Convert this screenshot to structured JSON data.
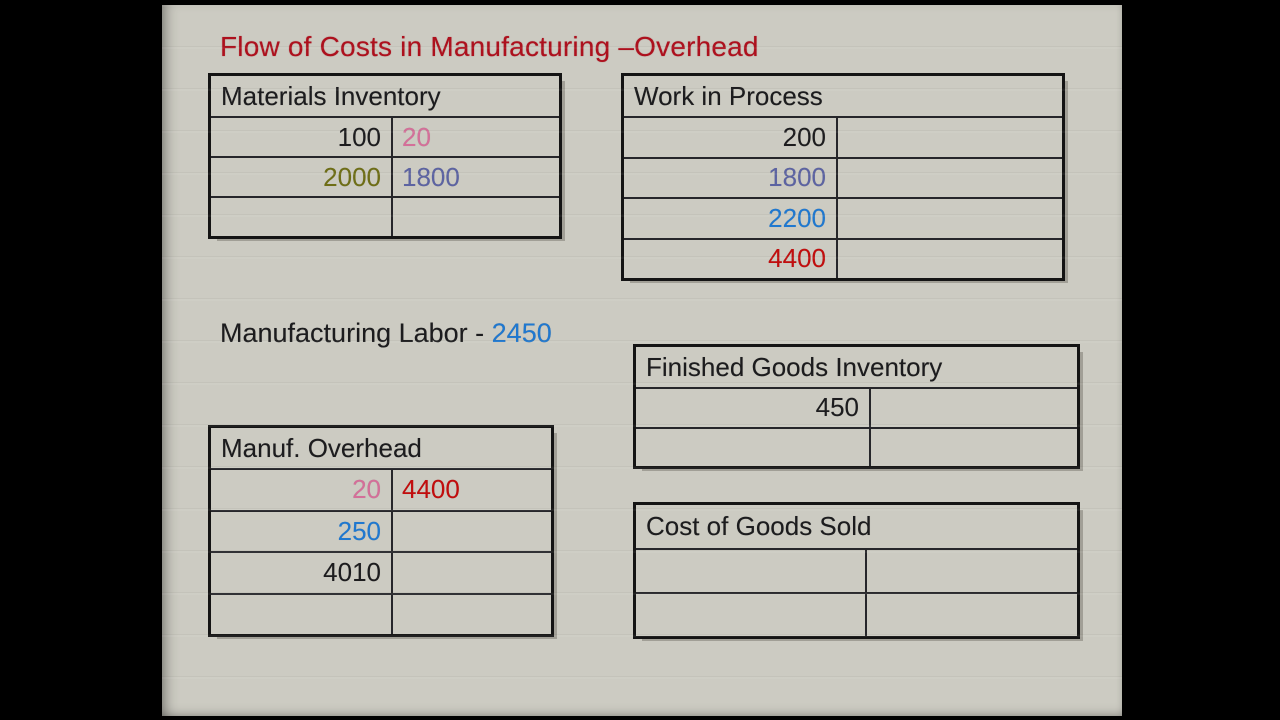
{
  "slide": {
    "title": "Flow of Costs in Manufacturing –Overhead"
  },
  "labels": {
    "manufacturing_labor": {
      "prefix": "Manufacturing Labor - ",
      "value": "2450"
    }
  },
  "palette": {
    "title_red": "#ad101d",
    "black": "#1c1c1e",
    "pink": "#d46f99",
    "olive": "#6e6e16",
    "slate": "#5c63a2",
    "blue": "#1f78d0",
    "red": "#c20d0d"
  },
  "accounts": {
    "materials": {
      "name": "Materials Inventory",
      "rows": [
        [
          {
            "t": "100",
            "c": "black"
          },
          {
            "t": "20",
            "c": "pink"
          }
        ],
        [
          {
            "t": "2000",
            "c": "olive"
          },
          {
            "t": "1800",
            "c": "slate"
          }
        ],
        [
          {
            "t": "",
            "c": ""
          },
          {
            "t": "",
            "c": ""
          }
        ]
      ]
    },
    "work_in_process": {
      "name": "Work in Process",
      "rows": [
        [
          {
            "t": "200",
            "c": "black"
          },
          {
            "t": "",
            "c": ""
          }
        ],
        [
          {
            "t": "1800",
            "c": "slate"
          },
          {
            "t": "",
            "c": ""
          }
        ],
        [
          {
            "t": "2200",
            "c": "blue"
          },
          {
            "t": "",
            "c": ""
          }
        ],
        [
          {
            "t": "4400",
            "c": "red"
          },
          {
            "t": "",
            "c": ""
          }
        ]
      ]
    },
    "manuf_overhead": {
      "name": "Manuf. Overhead",
      "rows": [
        [
          {
            "t": "20",
            "c": "pink"
          },
          {
            "t": "4400",
            "c": "red"
          }
        ],
        [
          {
            "t": "250",
            "c": "blue"
          },
          {
            "t": "",
            "c": ""
          }
        ],
        [
          {
            "t": "4010",
            "c": "black"
          },
          {
            "t": "",
            "c": ""
          }
        ],
        [
          {
            "t": "",
            "c": ""
          },
          {
            "t": "",
            "c": ""
          }
        ]
      ]
    },
    "finished_goods": {
      "name": "Finished Goods Inventory",
      "rows": [
        [
          {
            "t": "450",
            "c": "black"
          },
          {
            "t": "",
            "c": ""
          }
        ],
        [
          {
            "t": "",
            "c": ""
          },
          {
            "t": "",
            "c": ""
          }
        ]
      ]
    },
    "cogs": {
      "name": "Cost of Goods Sold",
      "rows": [
        [
          {
            "t": "",
            "c": ""
          },
          {
            "t": "",
            "c": ""
          }
        ],
        [
          {
            "t": "",
            "c": ""
          },
          {
            "t": "",
            "c": ""
          }
        ]
      ]
    }
  }
}
